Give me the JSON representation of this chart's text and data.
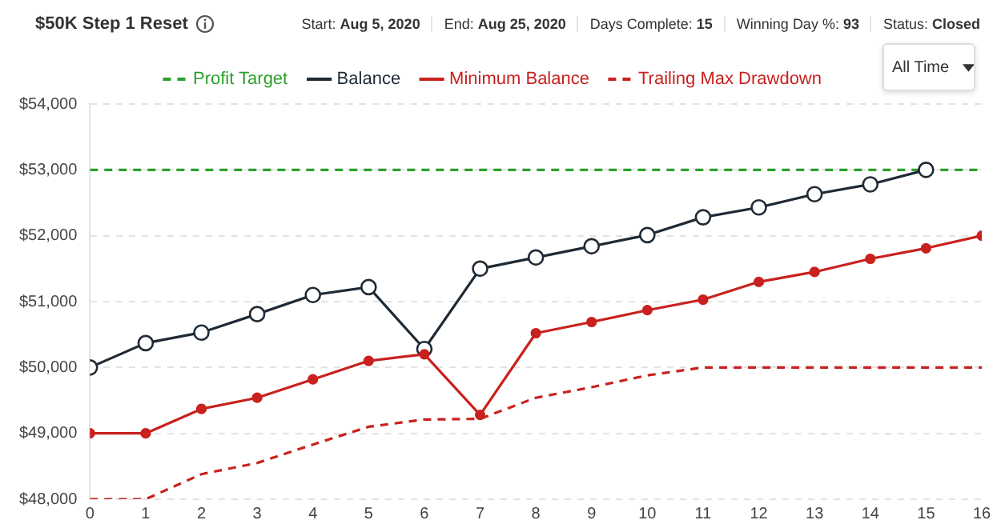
{
  "chart_data": {
    "type": "line",
    "title": "$50K Step 1 Reset",
    "annotations": [
      "Start: Aug 5, 2020",
      "End: Aug 25, 2020",
      "Days Complete: 15",
      "Winning Day %: 93",
      "Status: Closed",
      "All Time"
    ],
    "x": [
      0,
      1,
      2,
      3,
      4,
      5,
      6,
      7,
      8,
      9,
      10,
      11,
      12,
      13,
      14,
      15,
      16
    ],
    "series": [
      {
        "name": "Profit Target",
        "color": "#2ca02c",
        "line_style": "dashed",
        "marker": "none",
        "values": [
          53000,
          53000,
          53000,
          53000,
          53000,
          53000,
          53000,
          53000,
          53000,
          53000,
          53000,
          53000,
          53000,
          53000,
          53000,
          53000,
          53000
        ]
      },
      {
        "name": "Balance",
        "color": "#1f2a36",
        "line_style": "solid",
        "marker": "circle",
        "values": [
          50000,
          50370,
          50530,
          50810,
          51100,
          51220,
          50280,
          51500,
          51670,
          51840,
          52010,
          52280,
          52430,
          52630,
          52780,
          53000,
          null
        ]
      },
      {
        "name": "Minimum Balance",
        "color": "#c8211e",
        "line_style": "solid",
        "marker": "circle",
        "values": [
          49000,
          49000,
          49370,
          49540,
          49820,
          50100,
          50200,
          49280,
          50520,
          50690,
          50870,
          51030,
          51300,
          51450,
          51650,
          51810,
          52000
        ]
      },
      {
        "name": "Trailing Max Drawdown",
        "color": "#c8211e",
        "line_style": "dashed",
        "marker": "none",
        "values": [
          48000,
          48000,
          48380,
          48550,
          48830,
          49100,
          49210,
          49220,
          49540,
          49700,
          49880,
          50000,
          50000,
          50000,
          50000,
          50000,
          50000
        ]
      }
    ],
    "xlim": [
      0,
      16
    ],
    "xticks": [
      0,
      1,
      2,
      3,
      4,
      5,
      6,
      7,
      8,
      9,
      10,
      11,
      12,
      13,
      14,
      15,
      16
    ],
    "ylim": [
      48000,
      54000
    ],
    "yticks": [
      {
        "value": 48000,
        "label": "$48,000"
      },
      {
        "value": 49000,
        "label": "$49,000"
      },
      {
        "value": 50000,
        "label": "$50,000"
      },
      {
        "value": 51000,
        "label": "$51,000"
      },
      {
        "value": 52000,
        "label": "$52,000"
      },
      {
        "value": 53000,
        "label": "$53,000"
      },
      {
        "value": 54000,
        "label": "$54,000"
      }
    ],
    "grid": "y",
    "legend": "top"
  }
}
